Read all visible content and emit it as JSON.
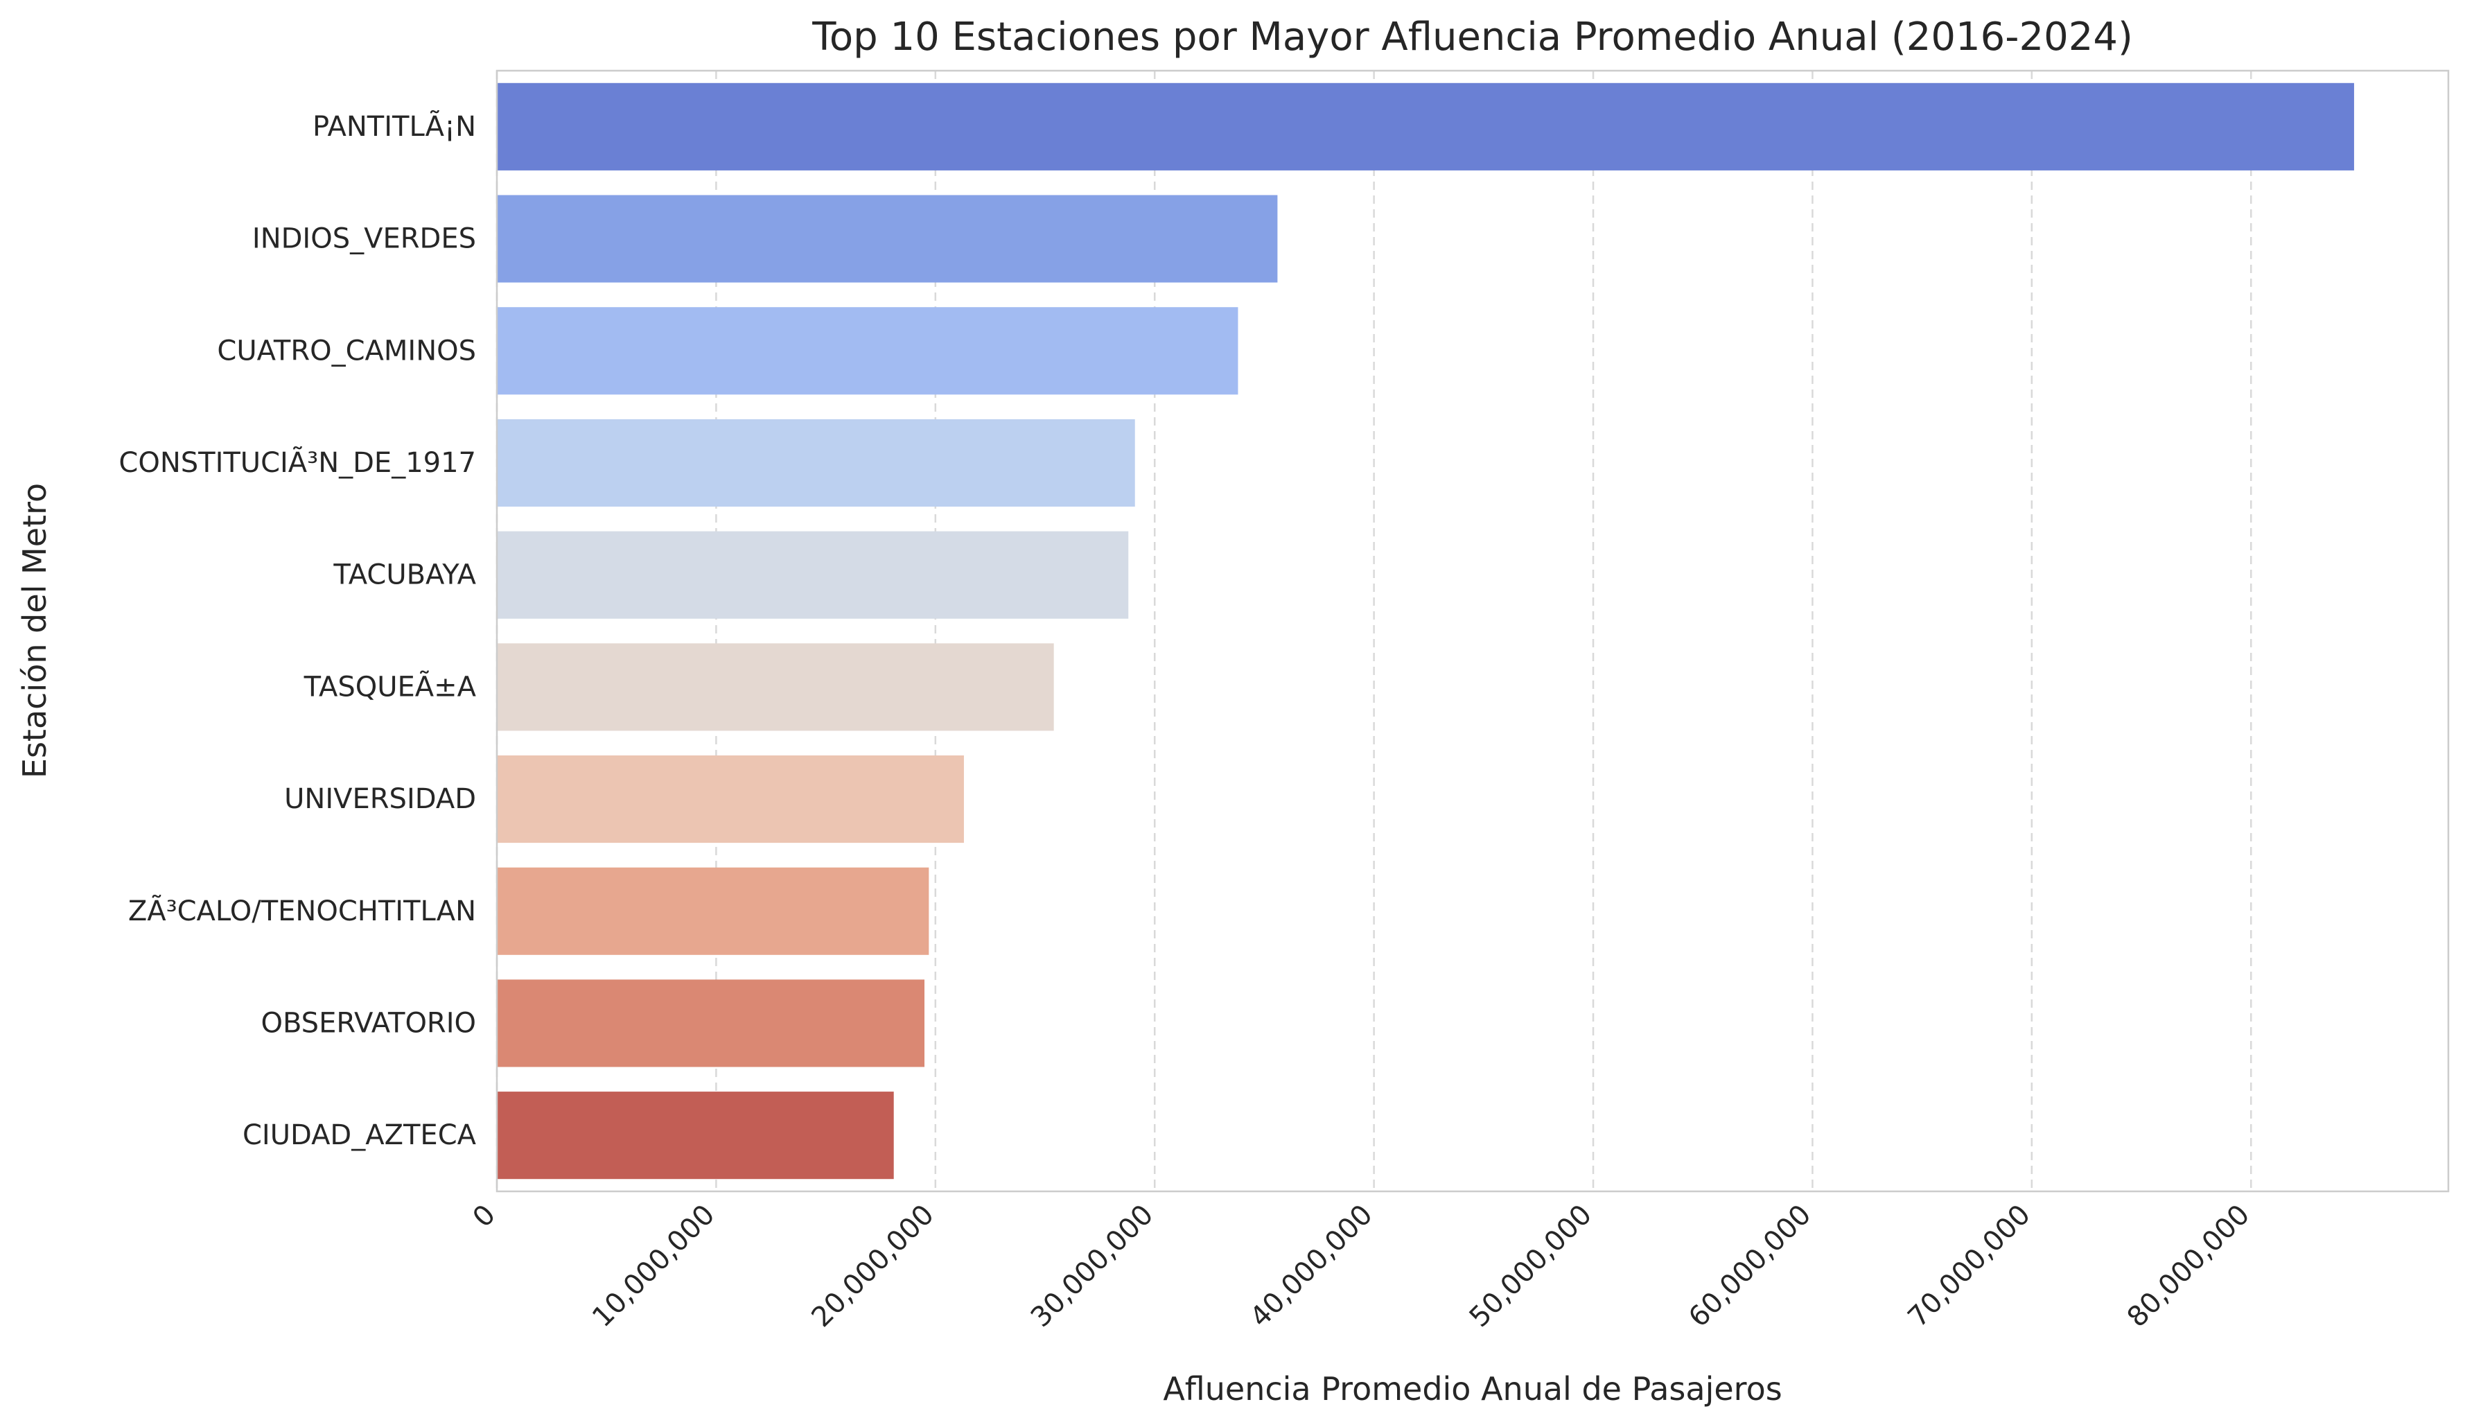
{
  "chart_data": {
    "type": "bar",
    "orientation": "horizontal",
    "title": "Top 10 Estaciones por Mayor Afluencia Promedio Anual (2016-2024)",
    "xlabel": "Afluencia Promedio Anual de Pasajeros",
    "ylabel": "Estación del Metro",
    "xlim": [
      0,
      89000000
    ],
    "xticks": [
      0,
      10000000,
      20000000,
      30000000,
      40000000,
      50000000,
      60000000,
      70000000,
      80000000
    ],
    "xtick_labels": [
      "0",
      "10,000,000",
      "20,000,000",
      "30,000,000",
      "40,000,000",
      "50,000,000",
      "60,000,000",
      "70,000,000",
      "80,000,000"
    ],
    "grid": "x, dashed",
    "categories": [
      "PANTITLÃ¡N",
      "INDIOS_VERDES",
      "CUATRO_CAMINOS",
      "CONSTITUCIÃ³N_DE_1917",
      "TACUBAYA",
      "TASQUEÃ±A",
      "UNIVERSIDAD",
      "ZÃ³CALO/TENOCHTITLAN",
      "OBSERVATORIO",
      "CIUDAD_AZTECA"
    ],
    "values": [
      84700000,
      35600000,
      33800000,
      29100000,
      28800000,
      25400000,
      21300000,
      19700000,
      19500000,
      18100000
    ],
    "colors": [
      "#6a80d4",
      "#86a1e6",
      "#a2bbf2",
      "#bcd0f0",
      "#d4dbe6",
      "#e4d8d1",
      "#ecc5b2",
      "#e7a78f",
      "#da8873",
      "#c25e55"
    ]
  }
}
